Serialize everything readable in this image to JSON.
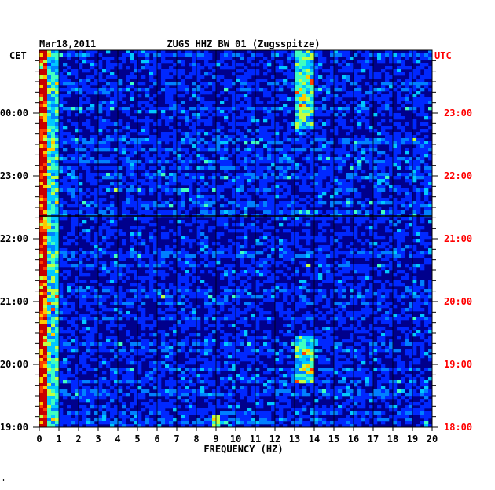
{
  "chart_data": {
    "type": "heatmap",
    "date": "Mar18,2011",
    "title": "ZUGS HHZ BW 01 (Zugsspitze)",
    "xlabel": "FREQUENCY (HZ)",
    "x_ticks": [
      "0",
      "1",
      "2",
      "3",
      "4",
      "5",
      "6",
      "7",
      "8",
      "9",
      "10",
      "11",
      "12",
      "13",
      "14",
      "15",
      "16",
      "17",
      "18",
      "19",
      "20"
    ],
    "xlim": [
      0,
      20
    ],
    "left_axis_label": "CET",
    "right_axis_label": "UTC",
    "left_ticks": [
      "00:00",
      "23:00",
      "22:00",
      "21:00",
      "20:00",
      "19:00"
    ],
    "right_ticks": [
      "23:00",
      "22:00",
      "21:00",
      "20:00",
      "19:00",
      "18:00"
    ],
    "time_range_cet": [
      "19:00",
      "00:40"
    ],
    "colormap": [
      "#00008c",
      "#0000c8",
      "#0028ff",
      "#0080ff",
      "#00c8ff",
      "#40ffc0",
      "#c0ff40",
      "#ffc800",
      "#ff4000",
      "#c80000"
    ],
    "bands": [
      {
        "freq": [
          0.0,
          1.0
        ],
        "level": "high"
      },
      {
        "freq": [
          13.0,
          14.0
        ],
        "level": "medium"
      },
      {
        "freq": [
          8.7,
          9.2
        ],
        "level": "medium"
      }
    ],
    "corner_mark": "\""
  },
  "colors": {
    "left_axis": "#000000",
    "right_axis": "#ff0000",
    "background": "#00008c"
  }
}
